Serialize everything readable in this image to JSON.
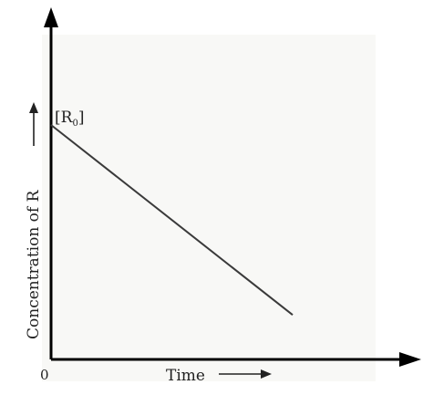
{
  "chart_data": {
    "type": "line",
    "xlabel": "Time",
    "ylabel": "Concentration of R",
    "origin_label": "0",
    "annotation": {
      "base": "[R",
      "sub": "0",
      "close": "]"
    },
    "series": [
      {
        "x": [
          0,
          1
        ],
        "y": [
          1,
          0.19
        ]
      }
    ],
    "xlim": [
      0,
      1.27
    ],
    "ylim": [
      0,
      1.3
    ],
    "grid": false,
    "line_color": "#3a3a3a",
    "axis_color": "#000000"
  }
}
